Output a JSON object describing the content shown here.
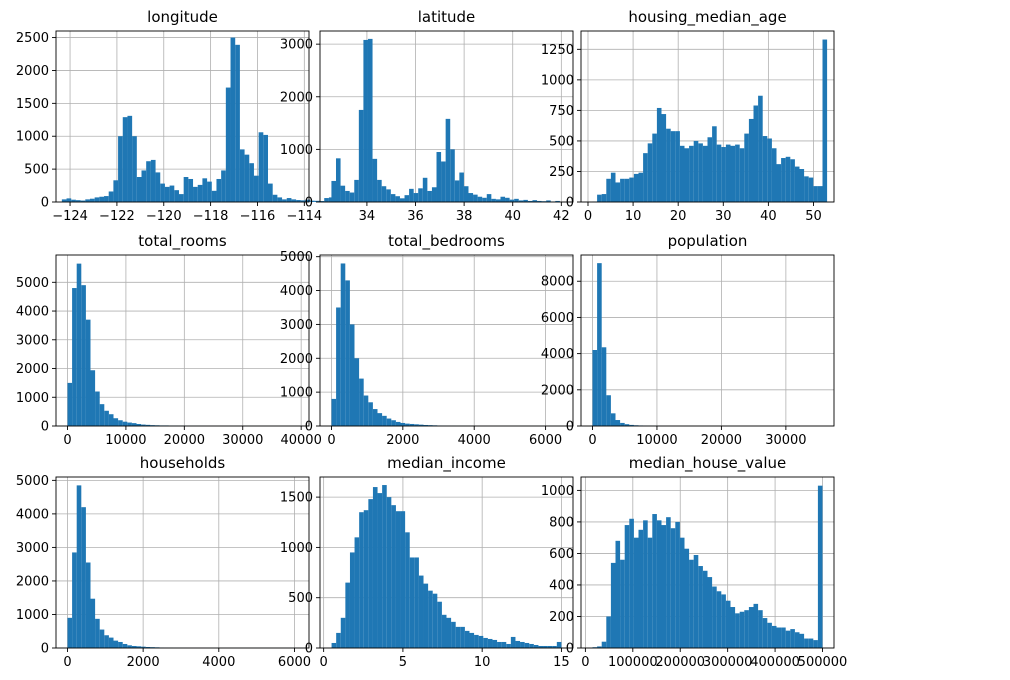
{
  "figure": {
    "bar_color": "#1f77b4",
    "grid_color": "#b0b0b0"
  },
  "chart_data": [
    {
      "type": "bar",
      "title": "longitude",
      "x_start": -124.35,
      "bin_width": 0.2,
      "values": [
        40,
        55,
        35,
        28,
        22,
        40,
        50,
        70,
        80,
        90,
        160,
        330,
        1000,
        1290,
        1310,
        1000,
        380,
        480,
        620,
        640,
        450,
        280,
        230,
        250,
        180,
        120,
        380,
        350,
        230,
        260,
        360,
        310,
        170,
        350,
        480,
        1740,
        2500,
        2390,
        800,
        720,
        590,
        400,
        1060,
        1020,
        280,
        110,
        70,
        40,
        60,
        40,
        30,
        25,
        35,
        20,
        18,
        15,
        60,
        70,
        20
      ],
      "xlim": [
        -124.6,
        -113.8
      ],
      "ylim": [
        0,
        2600
      ],
      "xticks": [
        -124,
        -122,
        -120,
        -118,
        -116,
        -114
      ],
      "xtick_labels": [
        "−124",
        "−122",
        "−120",
        "−118",
        "−116",
        "−114"
      ],
      "yticks": [
        0,
        500,
        1000,
        1500,
        2000,
        2500
      ],
      "ytick_labels": [
        "0",
        "500",
        "1000",
        "1500",
        "2000",
        "2500"
      ]
    },
    {
      "type": "bar",
      "title": "latitude",
      "x_start": 32.54,
      "bin_width": 0.188,
      "values": [
        400,
        830,
        310,
        210,
        180,
        420,
        1750,
        3080,
        3100,
        820,
        420,
        300,
        240,
        150,
        110,
        70,
        130,
        250,
        170,
        260,
        460,
        210,
        280,
        950,
        770,
        1580,
        1000,
        410,
        560,
        300,
        170,
        140,
        100,
        80,
        150,
        60,
        50,
        100,
        80,
        45,
        60,
        30,
        40,
        20,
        35,
        20,
        15,
        30,
        10,
        20
      ],
      "xlim": [
        32.07,
        42.48
      ],
      "ylim": [
        0,
        3250
      ],
      "xticks": [
        34,
        36,
        38,
        40,
        42
      ],
      "xtick_labels": [
        "34",
        "36",
        "38",
        "40",
        "42"
      ],
      "yticks": [
        0,
        1000,
        2000,
        3000
      ],
      "ytick_labels": [
        "0",
        "1000",
        "2000",
        "3000"
      ]
    },
    {
      "type": "bar",
      "title": "housing_median_age",
      "x_start": 1,
      "bin_width": 1.02,
      "values": [
        4,
        60,
        65,
        190,
        240,
        160,
        190,
        190,
        200,
        230,
        240,
        400,
        480,
        560,
        770,
        720,
        600,
        580,
        580,
        460,
        440,
        460,
        500,
        480,
        460,
        530,
        620,
        470,
        450,
        470,
        460,
        470,
        440,
        560,
        680,
        790,
        870,
        540,
        520,
        440,
        310,
        360,
        370,
        350,
        290,
        270,
        210,
        200,
        130,
        130,
        1330
      ],
      "xlim": [
        -1.55,
        54.55
      ],
      "ylim": [
        0,
        1400
      ],
      "xticks": [
        0,
        10,
        20,
        30,
        40,
        50
      ],
      "xtick_labels": [
        "0",
        "10",
        "20",
        "30",
        "40",
        "50"
      ],
      "yticks": [
        0,
        250,
        500,
        750,
        1000,
        1250
      ],
      "ytick_labels": [
        "0",
        "250",
        "500",
        "750",
        "1000",
        "1250"
      ]
    },
    {
      "type": "bar",
      "title": "total_rooms",
      "x_start": 2,
      "bin_width": 787.5,
      "values": [
        1500,
        4800,
        5650,
        4900,
        3700,
        1940,
        1200,
        760,
        530,
        410,
        270,
        200,
        150,
        120,
        100,
        70,
        50,
        40,
        30,
        25,
        20,
        20,
        15,
        15,
        10,
        10,
        8,
        8,
        6,
        5,
        4,
        4,
        3,
        3,
        2,
        2,
        2,
        2,
        1,
        1,
        1,
        1,
        1,
        1,
        1,
        1,
        1,
        1,
        1,
        1
      ],
      "xlim": [
        -1966,
        41341
      ],
      "ylim": [
        0,
        5950
      ],
      "xticks": [
        0,
        10000,
        20000,
        30000,
        40000
      ],
      "xtick_labels": [
        "0",
        "10000",
        "20000",
        "30000",
        "40000"
      ],
      "yticks": [
        0,
        1000,
        2000,
        3000,
        4000,
        5000
      ],
      "ytick_labels": [
        "0",
        "1000",
        "2000",
        "3000",
        "4000",
        "5000"
      ]
    },
    {
      "type": "bar",
      "title": "total_bedrooms",
      "x_start": 1,
      "bin_width": 128.9,
      "values": [
        800,
        3500,
        4800,
        4300,
        3000,
        2000,
        1400,
        900,
        700,
        500,
        380,
        300,
        220,
        170,
        120,
        90,
        70,
        60,
        50,
        40,
        30,
        25,
        20,
        15,
        12,
        10,
        8,
        6,
        5,
        4,
        3,
        3,
        2,
        2,
        2,
        1,
        1,
        1,
        1,
        1,
        1,
        1,
        1,
        1,
        1,
        1,
        1,
        1,
        1,
        1
      ],
      "xlim": [
        -321,
        6768
      ],
      "ylim": [
        0,
        5050
      ],
      "xticks": [
        0,
        2000,
        4000,
        6000
      ],
      "xtick_labels": [
        "0",
        "2000",
        "4000",
        "6000"
      ],
      "yticks": [
        0,
        1000,
        2000,
        3000,
        4000,
        5000
      ],
      "ytick_labels": [
        "0",
        "1000",
        "2000",
        "3000",
        "4000",
        "5000"
      ]
    },
    {
      "type": "bar",
      "title": "population",
      "x_start": 3,
      "bin_width": 713.6,
      "values": [
        4200,
        9000,
        4350,
        1700,
        700,
        330,
        170,
        100,
        60,
        40,
        30,
        20,
        15,
        10,
        8,
        6,
        5,
        4,
        3,
        3,
        2,
        2,
        1,
        1,
        1,
        1,
        1,
        1,
        1,
        1,
        1,
        1,
        1,
        1,
        1,
        1,
        1,
        1,
        1,
        1,
        1,
        1,
        1,
        1,
        1,
        1,
        1,
        1,
        1,
        1
      ],
      "xlim": [
        -1781,
        37466
      ],
      "ylim": [
        0,
        9450
      ],
      "xticks": [
        0,
        10000,
        20000,
        30000
      ],
      "xtick_labels": [
        "0",
        "10000",
        "20000",
        "30000"
      ],
      "yticks": [
        0,
        2000,
        4000,
        6000,
        8000
      ],
      "ytick_labels": [
        "0",
        "2000",
        "4000",
        "6000",
        "8000"
      ]
    },
    {
      "type": "bar",
      "title": "households",
      "x_start": 1,
      "bin_width": 121.6,
      "values": [
        900,
        2850,
        4850,
        4200,
        2550,
        1470,
        870,
        550,
        380,
        310,
        220,
        180,
        120,
        80,
        60,
        50,
        40,
        30,
        25,
        20,
        15,
        10,
        8,
        6,
        5,
        4,
        3,
        3,
        2,
        2,
        1,
        1,
        1,
        1,
        1,
        1,
        1,
        1,
        1,
        1,
        1,
        1,
        1,
        1,
        1,
        1,
        1,
        1,
        1,
        1
      ],
      "xlim": [
        -303,
        6384
      ],
      "ylim": [
        0,
        5100
      ],
      "xticks": [
        0,
        2000,
        4000,
        6000
      ],
      "xtick_labels": [
        "0",
        "2000",
        "4000",
        "6000"
      ],
      "yticks": [
        0,
        1000,
        2000,
        3000,
        4000,
        5000
      ],
      "ytick_labels": [
        "0",
        "1000",
        "2000",
        "3000",
        "4000",
        "5000"
      ]
    },
    {
      "type": "bar",
      "title": "median_income",
      "x_start": 0.5,
      "bin_width": 0.29,
      "values": [
        50,
        150,
        300,
        650,
        950,
        1100,
        1350,
        1370,
        1480,
        1600,
        1540,
        1620,
        1500,
        1420,
        1360,
        1360,
        1150,
        900,
        900,
        720,
        640,
        570,
        540,
        460,
        330,
        300,
        260,
        210,
        210,
        170,
        150,
        130,
        120,
        100,
        90,
        80,
        60,
        60,
        40,
        110,
        70,
        60,
        50,
        40,
        30,
        20,
        20,
        20,
        20,
        60
      ],
      "xlim": [
        -0.23,
        15.73
      ],
      "ylim": [
        0,
        1700
      ],
      "xticks": [
        0,
        5,
        10,
        15
      ],
      "xtick_labels": [
        "0",
        "5",
        "10",
        "15"
      ],
      "yticks": [
        0,
        500,
        1000,
        1500
      ],
      "ytick_labels": [
        "0",
        "500",
        "1000",
        "1500"
      ]
    },
    {
      "type": "bar",
      "title": "median_house_value",
      "x_start": 15000,
      "bin_width": 9700,
      "values": [
        5,
        10,
        40,
        200,
        540,
        680,
        560,
        780,
        820,
        700,
        750,
        810,
        700,
        850,
        810,
        780,
        830,
        760,
        800,
        700,
        630,
        560,
        590,
        520,
        490,
        450,
        390,
        360,
        340,
        300,
        260,
        220,
        230,
        240,
        260,
        280,
        240,
        190,
        160,
        140,
        130,
        130,
        110,
        120,
        100,
        90,
        60,
        60,
        50,
        1030
      ],
      "xlim": [
        -9250,
        524250
      ],
      "ylim": [
        0,
        1085
      ],
      "xticks": [
        0,
        100000,
        200000,
        300000,
        400000,
        500000
      ],
      "xtick_labels": [
        "0",
        "100000",
        "200000",
        "300000",
        "400000",
        "500000"
      ],
      "yticks": [
        0,
        200,
        400,
        600,
        800,
        1000
      ],
      "ytick_labels": [
        "0",
        "200",
        "400",
        "600",
        "800",
        "1000"
      ]
    }
  ]
}
